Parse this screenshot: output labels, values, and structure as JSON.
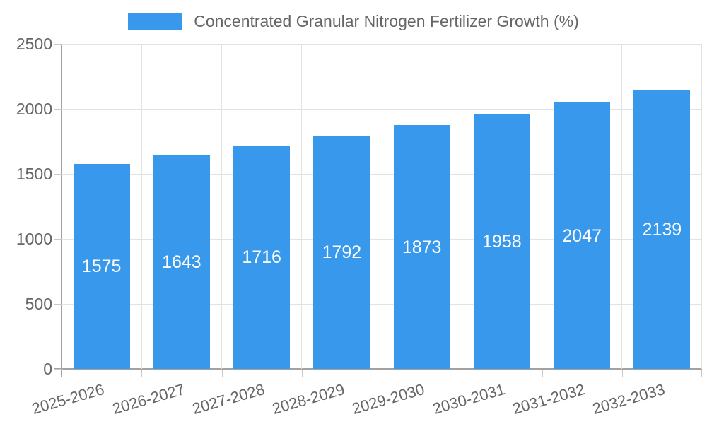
{
  "chart_data": {
    "type": "bar",
    "title": "Concentrated Granular Nitrogen Fertilizer Growth (%)",
    "categories": [
      "2025-2026",
      "2026-2027",
      "2027-2028",
      "2028-2029",
      "2029-2030",
      "2030-2031",
      "2031-2032",
      "2032-2033"
    ],
    "values": [
      1575,
      1643,
      1716,
      1792,
      1873,
      1958,
      2047,
      2139
    ],
    "series": [
      {
        "name": "Concentrated Granular Nitrogen Fertilizer Growth (%)",
        "values": [
          1575,
          1643,
          1716,
          1792,
          1873,
          1958,
          2047,
          2139
        ]
      }
    ],
    "xlabel": "",
    "ylabel": "",
    "ylim": [
      0,
      2500
    ],
    "yticks": [
      0,
      500,
      1000,
      1500,
      2000,
      2500
    ],
    "grid": true,
    "legend": {
      "position": "top",
      "entries": [
        {
          "label": "Concentrated Granular Nitrogen Fertilizer Growth (%)",
          "color": "#3898ec"
        }
      ]
    },
    "bar_color": "#3898ec",
    "value_label_color": "#ffffff",
    "axis_text_color": "#666666",
    "grid_color": "#e2e2e2",
    "axis_line_color": "#a2a2a2"
  }
}
